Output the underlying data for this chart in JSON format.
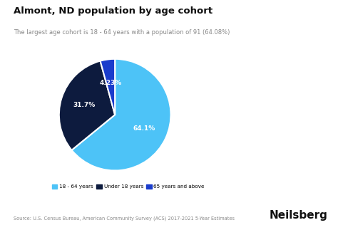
{
  "title": "Almont, ND population by age cohort",
  "subtitle": "The largest age cohort is 18 - 64 years with a population of 91 (64.08%)",
  "slices": [
    64.08,
    31.69,
    4.23
  ],
  "labels": [
    "64.1%",
    "31.7%",
    "4.23%"
  ],
  "colors": [
    "#4dc3f7",
    "#0d1b3e",
    "#1a3ccc"
  ],
  "legend_labels": [
    "18 - 64 years",
    "Under 18 years",
    "65 years and above"
  ],
  "source": "Source: U.S. Census Bureau, American Community Survey (ACS) 2017-2021 5-Year Estimates",
  "brand": "Neilsberg",
  "background_color": "#ffffff",
  "startangle": 90
}
